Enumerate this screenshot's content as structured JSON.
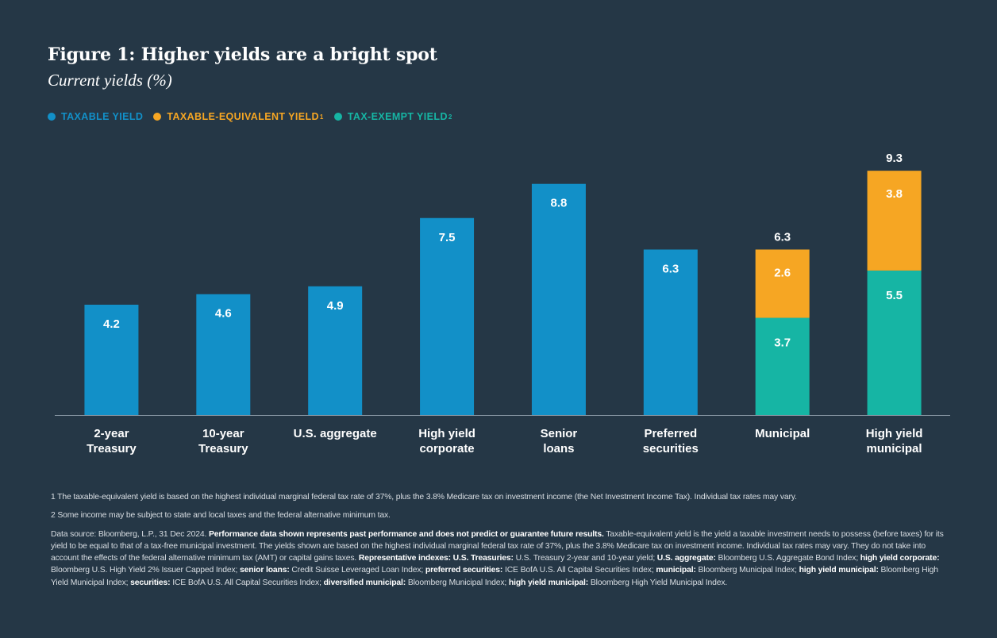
{
  "title": "Figure 1: Higher yields are a bright spot",
  "subtitle": "Current yields (%)",
  "legend": [
    {
      "label": "TAXABLE YIELD",
      "sup": "",
      "color": "#1290c8"
    },
    {
      "label": "TAXABLE-EQUIVALENT YIELD",
      "sup": "1",
      "color": "#f6a623"
    },
    {
      "label": "TAX-EXEMPT YIELD",
      "sup": "2",
      "color": "#16b5a4"
    }
  ],
  "chart_data": {
    "type": "bar",
    "stacked": true,
    "title": "Figure 1: Higher yields are a bright spot",
    "ylabel": "Current yields (%)",
    "ylim": [
      0,
      10
    ],
    "grid": false,
    "legend_position": "top-left",
    "categories": [
      [
        "2-year",
        "Treasury"
      ],
      [
        "10-year",
        "Treasury"
      ],
      [
        "U.S. aggregate"
      ],
      [
        "High yield",
        "corporate"
      ],
      [
        "Senior",
        "loans"
      ],
      [
        "Preferred",
        "securities"
      ],
      [
        "Municipal"
      ],
      [
        "High yield",
        "municipal"
      ]
    ],
    "series": [
      {
        "name": "Taxable yield",
        "color": "#1290c8",
        "values": [
          4.2,
          4.6,
          4.9,
          7.5,
          8.8,
          6.3,
          null,
          null
        ]
      },
      {
        "name": "Tax-exempt yield",
        "color": "#16b5a4",
        "values": [
          null,
          null,
          null,
          null,
          null,
          null,
          3.7,
          5.5
        ]
      },
      {
        "name": "Taxable-equivalent yield",
        "color": "#f6a623",
        "values": [
          null,
          null,
          null,
          null,
          null,
          null,
          2.6,
          3.8
        ]
      }
    ],
    "totals": [
      null,
      null,
      null,
      null,
      null,
      null,
      6.3,
      9.3
    ],
    "label_strings": {
      "taxable": [
        "4.2",
        "4.6",
        "4.9",
        "7.5",
        "8.8",
        "6.3",
        "",
        ""
      ],
      "exempt": [
        "",
        "",
        "",
        "",
        "",
        "",
        "3.7",
        "5.5"
      ],
      "equivalent": [
        "",
        "",
        "",
        "",
        "",
        "",
        "2.6",
        "3.8"
      ],
      "totals": [
        "",
        "",
        "",
        "",
        "",
        "",
        "6.3",
        "9.3"
      ]
    }
  },
  "footnotes": {
    "note1": "1 The taxable-equivalent yield is based on the highest individual marginal federal tax rate of 37%, plus the 3.8% Medicare tax on investment income (the Net Investment Income Tax). Individual tax rates may vary.",
    "note2": "2 Some income may be subject to state and local taxes and the federal alternative minimum tax.",
    "source": [
      {
        "bold": false,
        "text": "Data source: Bloomberg, L.P., 31 Dec 2024. "
      },
      {
        "bold": true,
        "text": "Performance data shown represents past performance and does not predict or guarantee future results."
      },
      {
        "bold": false,
        "text": " Taxable-equivalent yield is the yield a taxable investment needs to possess (before taxes) for its yield to be equal to that of a tax-free municipal investment. The yields shown are based on the highest individual marginal federal tax rate of 37%, plus the 3.8% Medicare tax on investment income. Individual tax rates may vary. They do not take into account the effects of the federal alternative minimum tax (AMT) or capital gains taxes. "
      },
      {
        "bold": true,
        "text": "Representative indexes: U.S. Treasuries:"
      },
      {
        "bold": false,
        "text": " U.S. Treasury 2-year and 10-year yield; "
      },
      {
        "bold": true,
        "text": "U.S. aggregate:"
      },
      {
        "bold": false,
        "text": " Bloomberg U.S. Aggregate Bond Index; "
      },
      {
        "bold": true,
        "text": "high yield corporate:"
      },
      {
        "bold": false,
        "text": " Bloomberg U.S. High Yield 2% Issuer Capped Index; "
      },
      {
        "bold": true,
        "text": "senior loans:"
      },
      {
        "bold": false,
        "text": " Credit Suisse Leveraged Loan Index; "
      },
      {
        "bold": true,
        "text": "preferred securities:"
      },
      {
        "bold": false,
        "text": " ICE BofA U.S. All Capital Securities Index; "
      },
      {
        "bold": true,
        "text": "municipal:"
      },
      {
        "bold": false,
        "text": " Bloomberg Municipal Index; "
      },
      {
        "bold": true,
        "text": "high yield municipal:"
      },
      {
        "bold": false,
        "text": " Bloomberg High Yield Municipal Index; "
      },
      {
        "bold": true,
        "text": "securities:"
      },
      {
        "bold": false,
        "text": " ICE BofA U.S. All Capital Securities Index; "
      },
      {
        "bold": true,
        "text": "diversified municipal:"
      },
      {
        "bold": false,
        "text": " Bloomberg Municipal Index; "
      },
      {
        "bold": true,
        "text": "high yield municipal:"
      },
      {
        "bold": false,
        "text": " Bloomberg High Yield Municipal Index."
      }
    ]
  },
  "colors": {
    "background": "#253746",
    "taxable": "#1290c8",
    "equivalent": "#f6a623",
    "exempt": "#16b5a4",
    "axis": "#8a98a5"
  }
}
